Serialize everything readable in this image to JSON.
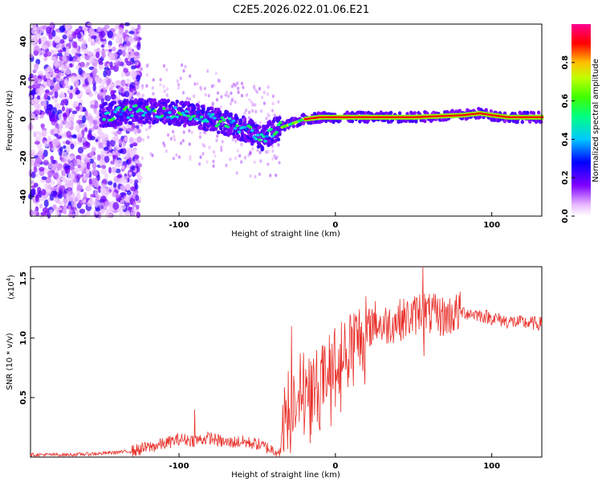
{
  "title": "C2E5.2026.022.01.06.E21",
  "chart_data": [
    {
      "type": "heatmap",
      "xlabel": "Height of straight line (km)",
      "ylabel": "Frequency (Hz)",
      "xlim": [
        -195,
        132
      ],
      "ylim": [
        -50,
        49
      ],
      "xticks": [
        -100,
        0,
        100
      ],
      "xtick_labels": [
        "-100",
        "0",
        "100"
      ],
      "yticks": [
        -40,
        -20,
        0,
        20,
        40
      ],
      "ytick_labels": [
        "-40",
        "-20",
        "0",
        "20",
        "40"
      ],
      "colorbar": {
        "label": "Normalized spectral amplitude",
        "range": [
          0.0,
          1.0
        ],
        "ticks": [
          0.0,
          0.2,
          0.4,
          0.6,
          0.8
        ],
        "tick_labels": [
          "0.0",
          "0.2",
          "0.4",
          "0.6",
          "0.8"
        ]
      },
      "ridge": {
        "x": [
          -148,
          -130,
          -110,
          -90,
          -70,
          -55,
          -47,
          -40,
          -30,
          -20,
          -10,
          0,
          50,
          80,
          92,
          100,
          110,
          132
        ],
        "freq_hz": [
          2,
          4,
          4,
          2,
          -2,
          -6,
          -10,
          -6,
          -3,
          0,
          1,
          1,
          1,
          2,
          3,
          2,
          1,
          1
        ]
      }
    },
    {
      "type": "line",
      "xlabel": "Height of straight line (km)",
      "ylabel": "SNR (10 * v/v)",
      "multiplier": "(x10",
      "multiplier_exp": "4",
      "multiplier_close": ")",
      "xlim": [
        -195,
        132
      ],
      "ylim": [
        0,
        1.6
      ],
      "xticks": [
        -100,
        0,
        100
      ],
      "xtick_labels": [
        "-100",
        "0",
        "100"
      ],
      "yticks": [
        0.5,
        1.0,
        1.5
      ],
      "ytick_labels": [
        "0.5",
        "1.0",
        "1.5"
      ],
      "color": "#e8302a",
      "series": [
        {
          "name": "SNR",
          "x": [
            -195,
            -170,
            -150,
            -130,
            -120,
            -110,
            -100,
            -90,
            -80,
            -70,
            -60,
            -50,
            -40,
            -35,
            -33,
            -30,
            -25,
            -20,
            -15,
            -10,
            -5,
            0,
            10,
            20,
            25,
            30,
            40,
            50,
            55,
            60,
            70,
            80,
            90,
            100,
            110,
            120,
            132
          ],
          "values": [
            0.02,
            0.02,
            0.03,
            0.05,
            0.08,
            0.11,
            0.15,
            0.14,
            0.16,
            0.12,
            0.13,
            0.11,
            0.06,
            0.05,
            0.35,
            0.45,
            0.55,
            0.6,
            0.58,
            0.62,
            0.7,
            0.8,
            0.95,
            1.05,
            1.15,
            1.1,
            1.15,
            1.18,
            1.25,
            1.2,
            1.18,
            1.22,
            1.2,
            1.17,
            1.14,
            1.13,
            1.12
          ],
          "spikes": [
            {
              "x": -90,
              "value": 0.4
            },
            {
              "x": -28,
              "value": 1.1
            },
            {
              "x": 3,
              "value": 0.95
            },
            {
              "x": 56,
              "value": 1.6
            },
            {
              "x": 56.5,
              "value": 0.85
            }
          ]
        }
      ]
    }
  ]
}
